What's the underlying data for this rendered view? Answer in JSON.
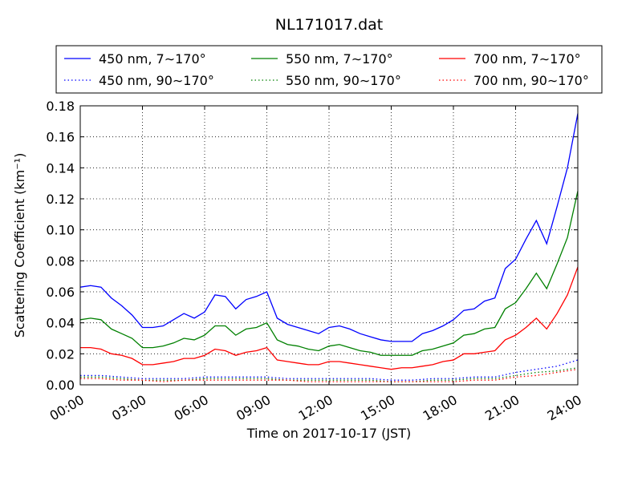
{
  "chart_data": {
    "type": "line",
    "title": "NL171017.dat",
    "xlabel": "Time on 2017-10-17 (JST)",
    "ylabel": "Scattering Coefficient (km⁻¹)",
    "xlim": [
      0,
      24
    ],
    "ylim": [
      0,
      0.18
    ],
    "grid": true,
    "legend_position": "top",
    "xticks": [
      {
        "value": 0,
        "label": "00:00"
      },
      {
        "value": 3,
        "label": "03:00"
      },
      {
        "value": 6,
        "label": "06:00"
      },
      {
        "value": 9,
        "label": "09:00"
      },
      {
        "value": 12,
        "label": "12:00"
      },
      {
        "value": 15,
        "label": "15:00"
      },
      {
        "value": 18,
        "label": "18:00"
      },
      {
        "value": 21,
        "label": "21:00"
      },
      {
        "value": 24,
        "label": "24:00"
      }
    ],
    "yticks": [
      {
        "value": 0,
        "label": "0.00"
      },
      {
        "value": 0.02,
        "label": "0.02"
      },
      {
        "value": 0.04,
        "label": "0.04"
      },
      {
        "value": 0.06,
        "label": "0.06"
      },
      {
        "value": 0.08,
        "label": "0.08"
      },
      {
        "value": 0.1,
        "label": "0.10"
      },
      {
        "value": 0.12,
        "label": "0.12"
      },
      {
        "value": 0.14,
        "label": "0.14"
      },
      {
        "value": 0.16,
        "label": "0.16"
      },
      {
        "value": 0.18,
        "label": "0.18"
      }
    ],
    "series": [
      {
        "name": "450 nm, 7∼170°",
        "color": "#0000ff",
        "style": "solid",
        "x": [
          0,
          0.5,
          1,
          1.5,
          2,
          2.5,
          3,
          3.5,
          4,
          4.5,
          5,
          5.5,
          6,
          6.5,
          7,
          7.5,
          8,
          8.5,
          9,
          9.5,
          10,
          10.5,
          11,
          11.5,
          12,
          12.5,
          13,
          13.5,
          14,
          14.5,
          15,
          15.5,
          16,
          16.5,
          17,
          17.5,
          18,
          18.5,
          19,
          19.5,
          20,
          20.5,
          21,
          21.5,
          22,
          22.5,
          23,
          23.5,
          24
        ],
        "y": [
          0.063,
          0.064,
          0.063,
          0.056,
          0.051,
          0.045,
          0.037,
          0.037,
          0.038,
          0.042,
          0.046,
          0.043,
          0.047,
          0.058,
          0.057,
          0.049,
          0.055,
          0.057,
          0.06,
          0.043,
          0.039,
          0.037,
          0.035,
          0.033,
          0.037,
          0.038,
          0.036,
          0.033,
          0.031,
          0.029,
          0.028,
          0.028,
          0.028,
          0.033,
          0.035,
          0.038,
          0.042,
          0.048,
          0.049,
          0.054,
          0.056,
          0.075,
          0.081,
          0.094,
          0.106,
          0.091,
          0.115,
          0.14,
          0.175
        ]
      },
      {
        "name": "450 nm, 90∼170°",
        "color": "#0000ff",
        "style": "dotted",
        "x": [
          0,
          1,
          2,
          3,
          4,
          5,
          6,
          7,
          8,
          9,
          10,
          11,
          12,
          13,
          14,
          15,
          16,
          17,
          18,
          19,
          20,
          21,
          22,
          23,
          24
        ],
        "y": [
          0.006,
          0.006,
          0.005,
          0.004,
          0.004,
          0.004,
          0.005,
          0.005,
          0.005,
          0.005,
          0.004,
          0.004,
          0.004,
          0.004,
          0.004,
          0.003,
          0.003,
          0.004,
          0.004,
          0.005,
          0.005,
          0.008,
          0.01,
          0.012,
          0.016
        ]
      },
      {
        "name": "550 nm, 7∼170°",
        "color": "#008000",
        "style": "solid",
        "x": [
          0,
          0.5,
          1,
          1.5,
          2,
          2.5,
          3,
          3.5,
          4,
          4.5,
          5,
          5.5,
          6,
          6.5,
          7,
          7.5,
          8,
          8.5,
          9,
          9.5,
          10,
          10.5,
          11,
          11.5,
          12,
          12.5,
          13,
          13.5,
          14,
          14.5,
          15,
          15.5,
          16,
          16.5,
          17,
          17.5,
          18,
          18.5,
          19,
          19.5,
          20,
          20.5,
          21,
          21.5,
          22,
          22.5,
          23,
          23.5,
          24
        ],
        "y": [
          0.042,
          0.043,
          0.042,
          0.036,
          0.033,
          0.03,
          0.024,
          0.024,
          0.025,
          0.027,
          0.03,
          0.029,
          0.032,
          0.038,
          0.038,
          0.032,
          0.036,
          0.037,
          0.04,
          0.029,
          0.026,
          0.025,
          0.023,
          0.022,
          0.025,
          0.026,
          0.024,
          0.022,
          0.021,
          0.019,
          0.019,
          0.019,
          0.019,
          0.022,
          0.023,
          0.025,
          0.027,
          0.032,
          0.033,
          0.036,
          0.037,
          0.049,
          0.053,
          0.062,
          0.072,
          0.062,
          0.078,
          0.095,
          0.125
        ]
      },
      {
        "name": "550 nm, 90∼170°",
        "color": "#008000",
        "style": "dotted",
        "x": [
          0,
          1,
          2,
          3,
          4,
          5,
          6,
          7,
          8,
          9,
          10,
          11,
          12,
          13,
          14,
          15,
          16,
          17,
          18,
          19,
          20,
          21,
          22,
          23,
          24
        ],
        "y": [
          0.005,
          0.005,
          0.004,
          0.003,
          0.003,
          0.003,
          0.004,
          0.004,
          0.004,
          0.004,
          0.003,
          0.003,
          0.003,
          0.003,
          0.003,
          0.002,
          0.002,
          0.003,
          0.003,
          0.004,
          0.004,
          0.006,
          0.008,
          0.009,
          0.011
        ]
      },
      {
        "name": "700 nm, 7∼170°",
        "color": "#ff0000",
        "style": "solid",
        "x": [
          0,
          0.5,
          1,
          1.5,
          2,
          2.5,
          3,
          3.5,
          4,
          4.5,
          5,
          5.5,
          6,
          6.5,
          7,
          7.5,
          8,
          8.5,
          9,
          9.5,
          10,
          10.5,
          11,
          11.5,
          12,
          12.5,
          13,
          13.5,
          14,
          14.5,
          15,
          15.5,
          16,
          16.5,
          17,
          17.5,
          18,
          18.5,
          19,
          19.5,
          20,
          20.5,
          21,
          21.5,
          22,
          22.5,
          23,
          23.5,
          24
        ],
        "y": [
          0.024,
          0.024,
          0.023,
          0.02,
          0.019,
          0.017,
          0.013,
          0.013,
          0.014,
          0.015,
          0.017,
          0.017,
          0.019,
          0.023,
          0.022,
          0.019,
          0.021,
          0.022,
          0.024,
          0.016,
          0.015,
          0.014,
          0.013,
          0.013,
          0.015,
          0.015,
          0.014,
          0.013,
          0.012,
          0.011,
          0.01,
          0.011,
          0.011,
          0.012,
          0.013,
          0.015,
          0.016,
          0.02,
          0.02,
          0.021,
          0.022,
          0.029,
          0.032,
          0.037,
          0.043,
          0.036,
          0.046,
          0.058,
          0.076
        ]
      },
      {
        "name": "700 nm, 90∼170°",
        "color": "#ff0000",
        "style": "dotted",
        "x": [
          0,
          1,
          2,
          3,
          4,
          5,
          6,
          7,
          8,
          9,
          10,
          11,
          12,
          13,
          14,
          15,
          16,
          17,
          18,
          19,
          20,
          21,
          22,
          23,
          24
        ],
        "y": [
          0.004,
          0.004,
          0.003,
          0.003,
          0.002,
          0.003,
          0.003,
          0.003,
          0.003,
          0.003,
          0.003,
          0.002,
          0.002,
          0.002,
          0.002,
          0.002,
          0.002,
          0.002,
          0.002,
          0.003,
          0.003,
          0.005,
          0.006,
          0.008,
          0.01
        ]
      }
    ]
  }
}
